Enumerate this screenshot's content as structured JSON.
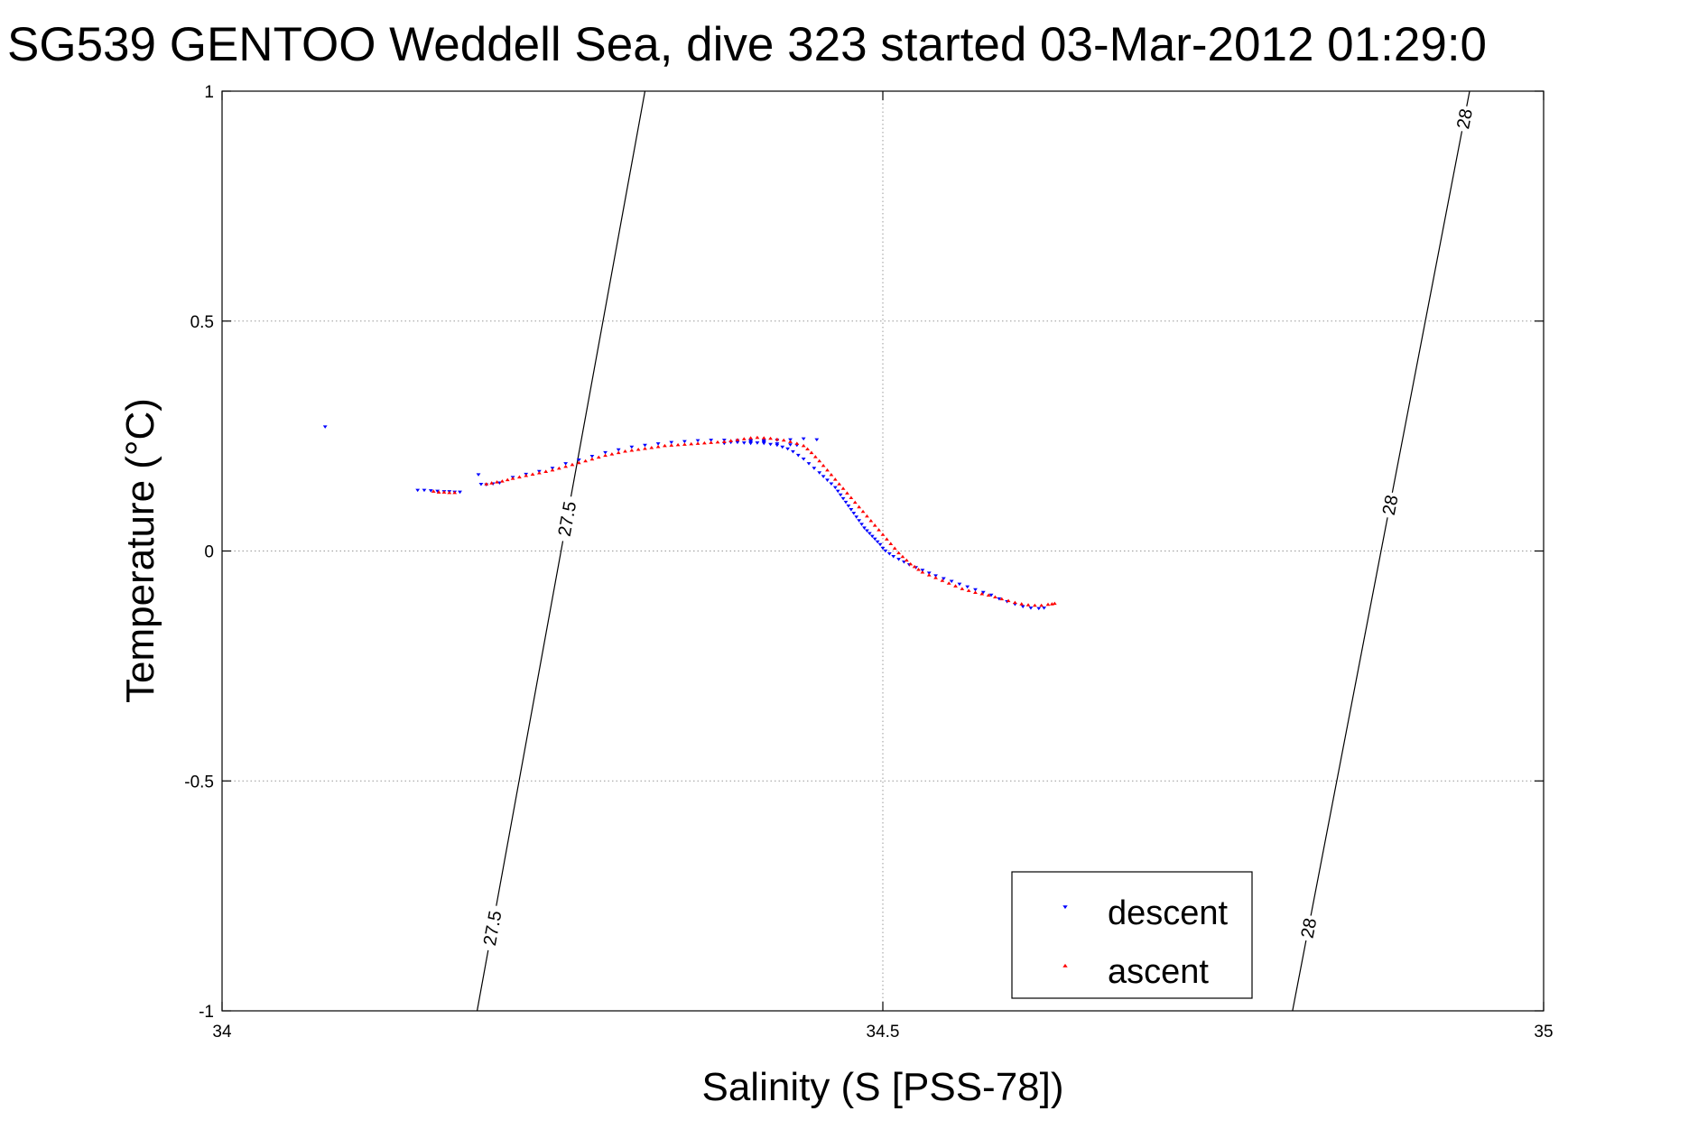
{
  "chart_data": {
    "type": "scatter",
    "title": "SG539 GENTOO Weddell Sea, dive 323 started 03-Mar-2012 01:29:0",
    "xlabel": "Salinity (S [PSS-78])",
    "ylabel": "Temperature (°C)",
    "xlim": [
      34,
      35
    ],
    "ylim": [
      -1,
      1
    ],
    "xticks": [
      34,
      34.5,
      35
    ],
    "xtick_labels": [
      "34",
      "34.5",
      "35"
    ],
    "yticks": [
      -1,
      -0.5,
      0,
      0.5,
      1
    ],
    "ytick_labels": [
      "-1",
      "-0.5",
      "0",
      "0.5",
      "1"
    ],
    "grid": true,
    "legend_position": "bottom-right",
    "series": [
      {
        "name": "descent",
        "color": "#0000ff",
        "marker": "triangle-down",
        "points": [
          [
            34.078,
            0.27
          ],
          [
            34.148,
            0.132
          ],
          [
            34.153,
            0.132
          ],
          [
            34.158,
            0.131
          ],
          [
            34.163,
            0.13
          ],
          [
            34.168,
            0.129
          ],
          [
            34.172,
            0.129
          ],
          [
            34.176,
            0.128
          ],
          [
            34.18,
            0.128
          ],
          [
            34.194,
            0.166
          ],
          [
            34.196,
            0.145
          ],
          [
            34.2,
            0.144
          ],
          [
            34.205,
            0.146
          ],
          [
            34.21,
            0.148
          ],
          [
            34.22,
            0.16
          ],
          [
            34.23,
            0.167
          ],
          [
            34.24,
            0.173
          ],
          [
            34.25,
            0.18
          ],
          [
            34.26,
            0.19
          ],
          [
            34.27,
            0.198
          ],
          [
            34.28,
            0.206
          ],
          [
            34.29,
            0.214
          ],
          [
            34.3,
            0.22
          ],
          [
            34.31,
            0.226
          ],
          [
            34.32,
            0.23
          ],
          [
            34.33,
            0.233
          ],
          [
            34.34,
            0.236
          ],
          [
            34.35,
            0.238
          ],
          [
            34.36,
            0.24
          ],
          [
            34.37,
            0.241
          ],
          [
            34.38,
            0.241
          ],
          [
            34.39,
            0.24
          ],
          [
            34.4,
            0.24
          ],
          [
            34.41,
            0.24
          ],
          [
            34.42,
            0.241
          ],
          [
            34.43,
            0.242
          ],
          [
            34.44,
            0.244
          ],
          [
            34.45,
            0.242
          ],
          [
            34.4,
            0.239
          ],
          [
            34.41,
            0.238
          ],
          [
            34.4,
            0.234
          ],
          [
            34.405,
            0.235
          ],
          [
            34.41,
            0.236
          ],
          [
            34.42,
            0.233
          ],
          [
            34.43,
            0.231
          ],
          [
            34.435,
            0.23
          ],
          [
            34.38,
            0.234
          ],
          [
            34.385,
            0.236
          ],
          [
            34.39,
            0.236
          ],
          [
            34.395,
            0.235
          ],
          [
            34.4,
            0.236
          ],
          [
            34.41,
            0.234
          ],
          [
            34.415,
            0.232
          ],
          [
            34.42,
            0.23
          ],
          [
            34.424,
            0.226
          ],
          [
            34.428,
            0.222
          ],
          [
            34.432,
            0.216
          ],
          [
            34.436,
            0.208
          ],
          [
            34.44,
            0.2
          ],
          [
            34.444,
            0.19
          ],
          [
            34.448,
            0.18
          ],
          [
            34.452,
            0.17
          ],
          [
            34.455,
            0.162
          ],
          [
            34.458,
            0.154
          ],
          [
            34.461,
            0.146
          ],
          [
            34.464,
            0.138
          ],
          [
            34.466,
            0.13
          ],
          [
            34.468,
            0.122
          ],
          [
            34.47,
            0.114
          ],
          [
            34.472,
            0.106
          ],
          [
            34.474,
            0.098
          ],
          [
            34.476,
            0.09
          ],
          [
            34.478,
            0.082
          ],
          [
            34.48,
            0.074
          ],
          [
            34.482,
            0.066
          ],
          [
            34.484,
            0.058
          ],
          [
            34.486,
            0.05
          ],
          [
            34.488,
            0.044
          ],
          [
            34.49,
            0.038
          ],
          [
            34.492,
            0.032
          ],
          [
            34.494,
            0.026
          ],
          [
            34.496,
            0.02
          ],
          [
            34.498,
            0.014
          ],
          [
            34.5,
            0.006
          ],
          [
            34.502,
            0.0
          ],
          [
            34.505,
            -0.006
          ],
          [
            34.508,
            -0.012
          ],
          [
            34.512,
            -0.018
          ],
          [
            34.516,
            -0.024
          ],
          [
            34.52,
            -0.03
          ],
          [
            34.525,
            -0.036
          ],
          [
            34.53,
            -0.042
          ],
          [
            34.535,
            -0.048
          ],
          [
            34.54,
            -0.054
          ],
          [
            34.546,
            -0.06
          ],
          [
            34.552,
            -0.066
          ],
          [
            34.558,
            -0.072
          ],
          [
            34.564,
            -0.078
          ],
          [
            34.57,
            -0.084
          ],
          [
            34.576,
            -0.09
          ],
          [
            34.582,
            -0.096
          ],
          [
            34.588,
            -0.104
          ],
          [
            34.594,
            -0.11
          ],
          [
            34.6,
            -0.116
          ],
          [
            34.606,
            -0.121
          ],
          [
            34.612,
            -0.124
          ],
          [
            34.618,
            -0.125
          ],
          [
            34.622,
            -0.124
          ]
        ]
      },
      {
        "name": "ascent",
        "color": "#ff0000",
        "marker": "triangle-up",
        "points": [
          [
            34.16,
            0.13
          ],
          [
            34.164,
            0.128
          ],
          [
            34.168,
            0.128
          ],
          [
            34.172,
            0.127
          ],
          [
            34.176,
            0.127
          ],
          [
            34.2,
            0.146
          ],
          [
            34.204,
            0.148
          ],
          [
            34.208,
            0.15
          ],
          [
            34.212,
            0.152
          ],
          [
            34.216,
            0.155
          ],
          [
            34.22,
            0.158
          ],
          [
            34.225,
            0.161
          ],
          [
            34.23,
            0.164
          ],
          [
            34.235,
            0.167
          ],
          [
            34.24,
            0.17
          ],
          [
            34.245,
            0.173
          ],
          [
            34.25,
            0.176
          ],
          [
            34.255,
            0.18
          ],
          [
            34.26,
            0.184
          ],
          [
            34.265,
            0.188
          ],
          [
            34.27,
            0.192
          ],
          [
            34.275,
            0.196
          ],
          [
            34.28,
            0.2
          ],
          [
            34.285,
            0.204
          ],
          [
            34.29,
            0.208
          ],
          [
            34.295,
            0.211
          ],
          [
            34.3,
            0.214
          ],
          [
            34.305,
            0.217
          ],
          [
            34.31,
            0.219
          ],
          [
            34.315,
            0.221
          ],
          [
            34.32,
            0.223
          ],
          [
            34.325,
            0.225
          ],
          [
            34.33,
            0.227
          ],
          [
            34.335,
            0.229
          ],
          [
            34.34,
            0.23
          ],
          [
            34.345,
            0.231
          ],
          [
            34.35,
            0.232
          ],
          [
            34.355,
            0.233
          ],
          [
            34.36,
            0.234
          ],
          [
            34.365,
            0.235
          ],
          [
            34.37,
            0.236
          ],
          [
            34.375,
            0.237
          ],
          [
            34.38,
            0.238
          ],
          [
            34.385,
            0.24
          ],
          [
            34.39,
            0.242
          ],
          [
            34.395,
            0.244
          ],
          [
            34.4,
            0.246
          ],
          [
            34.405,
            0.247
          ],
          [
            34.41,
            0.246
          ],
          [
            34.415,
            0.245
          ],
          [
            34.42,
            0.243
          ],
          [
            34.425,
            0.241
          ],
          [
            34.43,
            0.238
          ],
          [
            34.435,
            0.234
          ],
          [
            34.44,
            0.229
          ],
          [
            34.443,
            0.222
          ],
          [
            34.446,
            0.214
          ],
          [
            34.449,
            0.205
          ],
          [
            34.452,
            0.196
          ],
          [
            34.455,
            0.186
          ],
          [
            34.458,
            0.176
          ],
          [
            34.461,
            0.166
          ],
          [
            34.464,
            0.156
          ],
          [
            34.467,
            0.146
          ],
          [
            34.47,
            0.136
          ],
          [
            34.473,
            0.126
          ],
          [
            34.476,
            0.116
          ],
          [
            34.479,
            0.106
          ],
          [
            34.482,
            0.096
          ],
          [
            34.485,
            0.086
          ],
          [
            34.488,
            0.076
          ],
          [
            34.491,
            0.066
          ],
          [
            34.494,
            0.056
          ],
          [
            34.497,
            0.046
          ],
          [
            34.5,
            0.036
          ],
          [
            34.503,
            0.026
          ],
          [
            34.506,
            0.016
          ],
          [
            34.509,
            0.006
          ],
          [
            34.512,
            -0.004
          ],
          [
            34.515,
            -0.012
          ],
          [
            34.518,
            -0.02
          ],
          [
            34.521,
            -0.028
          ],
          [
            34.524,
            -0.034
          ],
          [
            34.527,
            -0.04
          ],
          [
            34.53,
            -0.046
          ],
          [
            34.535,
            -0.052
          ],
          [
            34.54,
            -0.058
          ],
          [
            34.545,
            -0.064
          ],
          [
            34.55,
            -0.07
          ],
          [
            34.555,
            -0.076
          ],
          [
            34.56,
            -0.082
          ],
          [
            34.565,
            -0.086
          ],
          [
            34.57,
            -0.09
          ],
          [
            34.575,
            -0.093
          ],
          [
            34.58,
            -0.096
          ],
          [
            34.585,
            -0.1
          ],
          [
            34.59,
            -0.104
          ],
          [
            34.595,
            -0.108
          ],
          [
            34.6,
            -0.112
          ],
          [
            34.605,
            -0.115
          ],
          [
            34.61,
            -0.117
          ],
          [
            34.615,
            -0.118
          ],
          [
            34.62,
            -0.118
          ],
          [
            34.625,
            -0.116
          ],
          [
            34.628,
            -0.115
          ],
          [
            34.63,
            -0.114
          ]
        ]
      }
    ],
    "contours": [
      {
        "label": "27.5",
        "color": "#000000",
        "x_at_ymax": 34.32,
        "x_at_ymin": 34.193,
        "label_ys": [
          0.07,
          -0.82
        ]
      },
      {
        "label": "28",
        "color": "#000000",
        "x_at_ymax": 34.944,
        "x_at_ymin": 34.81,
        "label_ys": [
          0.94,
          0.1,
          -0.82
        ]
      }
    ]
  }
}
